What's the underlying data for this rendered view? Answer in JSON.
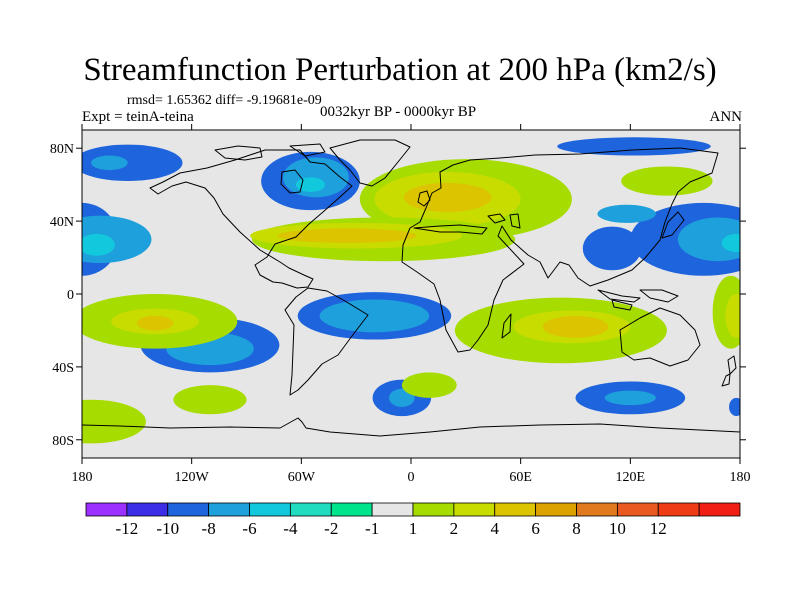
{
  "chart_data": {
    "type": "heatmap",
    "title": "Streamfunction Perturbation at 200 hPa (km2/s)",
    "stats": "rmsd= 1.65362 diff= -9.19681e-09",
    "experiment": "Expt = teinA-teina",
    "period": "0032kyr BP - 0000kyr BP",
    "season": "ANN",
    "xlim": [
      -180,
      180
    ],
    "ylim": [
      -90,
      90
    ],
    "x_ticks": [
      {
        "value": -180,
        "label": "180"
      },
      {
        "value": -120,
        "label": "120W"
      },
      {
        "value": -60,
        "label": "60W"
      },
      {
        "value": 0,
        "label": "0"
      },
      {
        "value": 60,
        "label": "60E"
      },
      {
        "value": 120,
        "label": "120E"
      },
      {
        "value": 180,
        "label": "180"
      }
    ],
    "y_ticks": [
      {
        "value": 80,
        "label": "80N"
      },
      {
        "value": 40,
        "label": "40N"
      },
      {
        "value": 0,
        "label": "0"
      },
      {
        "value": -40,
        "label": "40S"
      },
      {
        "value": -80,
        "label": "80S"
      }
    ],
    "colorbar": {
      "colors": [
        "#9b30ff",
        "#3b2ee6",
        "#1e64dc",
        "#1ea0dc",
        "#12c8dc",
        "#22dcc0",
        "#00e48c",
        "#e6e6e6",
        "#a6dc00",
        "#c8dc00",
        "#dcc400",
        "#dca200",
        "#e07a1e",
        "#e85a20",
        "#f03c14",
        "#f01e14"
      ],
      "labels": [
        "-12",
        "-10",
        "-8",
        "-6",
        "-4",
        "-2",
        "-1",
        "1",
        "2",
        "4",
        "6",
        "8",
        "10",
        "12"
      ]
    },
    "regions": [
      {
        "level": 2,
        "lon": -155,
        "lat": 72,
        "rlon": 30,
        "rlat": 10
      },
      {
        "level": 3,
        "lon": -165,
        "lat": 72,
        "rlon": 10,
        "rlat": 4
      },
      {
        "level": 2,
        "lon": 122,
        "lat": 81,
        "rlon": 42,
        "rlat": 5
      },
      {
        "level": 2,
        "lon": -55,
        "lat": 62,
        "rlon": 27,
        "rlat": 16
      },
      {
        "level": 3,
        "lon": -52,
        "lat": 64,
        "rlon": 18,
        "rlat": 11
      },
      {
        "level": 4,
        "lon": -55,
        "lat": 60,
        "rlon": 8,
        "rlat": 4
      },
      {
        "level": 2,
        "lon": 160,
        "lat": 30,
        "rlon": 40,
        "rlat": 20
      },
      {
        "level": 2,
        "lon": -180,
        "lat": 30,
        "rlon": 20,
        "rlat": 20
      },
      {
        "level": 3,
        "lon": -170,
        "lat": 30,
        "rlon": 28,
        "rlat": 13
      },
      {
        "level": 4,
        "lon": -172,
        "lat": 27,
        "rlon": 10,
        "rlat": 6
      },
      {
        "level": 3,
        "lon": 168,
        "lat": 30,
        "rlon": 22,
        "rlat": 12
      },
      {
        "level": 4,
        "lon": 178,
        "lat": 28,
        "rlon": 8,
        "rlat": 5
      },
      {
        "level": 2,
        "lon": 110,
        "lat": 25,
        "rlon": 16,
        "rlat": 12
      },
      {
        "level": 3,
        "lon": 118,
        "lat": 44,
        "rlon": 16,
        "rlat": 5
      },
      {
        "level": 2,
        "lon": -110,
        "lat": -28,
        "rlon": 38,
        "rlat": 15
      },
      {
        "level": 3,
        "lon": -110,
        "lat": -30,
        "rlon": 24,
        "rlat": 9
      },
      {
        "level": 2,
        "lon": -20,
        "lat": -12,
        "rlon": 42,
        "rlat": 13
      },
      {
        "level": 3,
        "lon": -20,
        "lat": -12,
        "rlon": 30,
        "rlat": 9
      },
      {
        "level": 2,
        "lon": -5,
        "lat": -57,
        "rlon": 16,
        "rlat": 10
      },
      {
        "level": 3,
        "lon": -5,
        "lat": -57,
        "rlon": 7,
        "rlat": 5
      },
      {
        "level": 2,
        "lon": 120,
        "lat": -57,
        "rlon": 30,
        "rlat": 9
      },
      {
        "level": 3,
        "lon": 120,
        "lat": -57,
        "rlon": 14,
        "rlat": 4
      },
      {
        "level": 2,
        "lon": 178,
        "lat": -62,
        "rlon": 4,
        "rlat": 5
      },
      {
        "level": 8,
        "lon": 30,
        "lat": 52,
        "rlon": 58,
        "rlat": 22
      },
      {
        "level": 9,
        "lon": 20,
        "lat": 52,
        "rlon": 40,
        "rlat": 15
      },
      {
        "level": 10,
        "lon": 20,
        "lat": 53,
        "rlon": 24,
        "rlat": 8
      },
      {
        "level": 8,
        "lon": -15,
        "lat": 30,
        "rlon": 72,
        "rlat": 12
      },
      {
        "level": 9,
        "lon": -30,
        "lat": 32,
        "rlon": 58,
        "rlat": 7
      },
      {
        "level": 10,
        "lon": -35,
        "lat": 32,
        "rlon": 38,
        "rlat": 4
      },
      {
        "level": 8,
        "lon": 140,
        "lat": 62,
        "rlon": 25,
        "rlat": 8
      },
      {
        "level": 8,
        "lon": 82,
        "lat": -20,
        "rlon": 58,
        "rlat": 18
      },
      {
        "level": 9,
        "lon": 88,
        "lat": -18,
        "rlon": 32,
        "rlat": 9
      },
      {
        "level": 10,
        "lon": 90,
        "lat": -18,
        "rlon": 18,
        "rlat": 6
      },
      {
        "level": 8,
        "lon": -140,
        "lat": -15,
        "rlon": 45,
        "rlat": 15
      },
      {
        "level": 9,
        "lon": -140,
        "lat": -15,
        "rlon": 24,
        "rlat": 7
      },
      {
        "level": 10,
        "lon": -140,
        "lat": -16,
        "rlon": 10,
        "rlat": 4
      },
      {
        "level": 8,
        "lon": -175,
        "lat": -70,
        "rlon": 30,
        "rlat": 12
      },
      {
        "level": 8,
        "lon": -110,
        "lat": -58,
        "rlon": 20,
        "rlat": 8
      },
      {
        "level": 8,
        "lon": 10,
        "lat": -50,
        "rlon": 15,
        "rlat": 7
      },
      {
        "level": 8,
        "lon": 175,
        "lat": -10,
        "rlon": 10,
        "rlat": 20
      },
      {
        "level": 9,
        "lon": 178,
        "lat": -12,
        "rlon": 6,
        "rlat": 12
      }
    ]
  }
}
